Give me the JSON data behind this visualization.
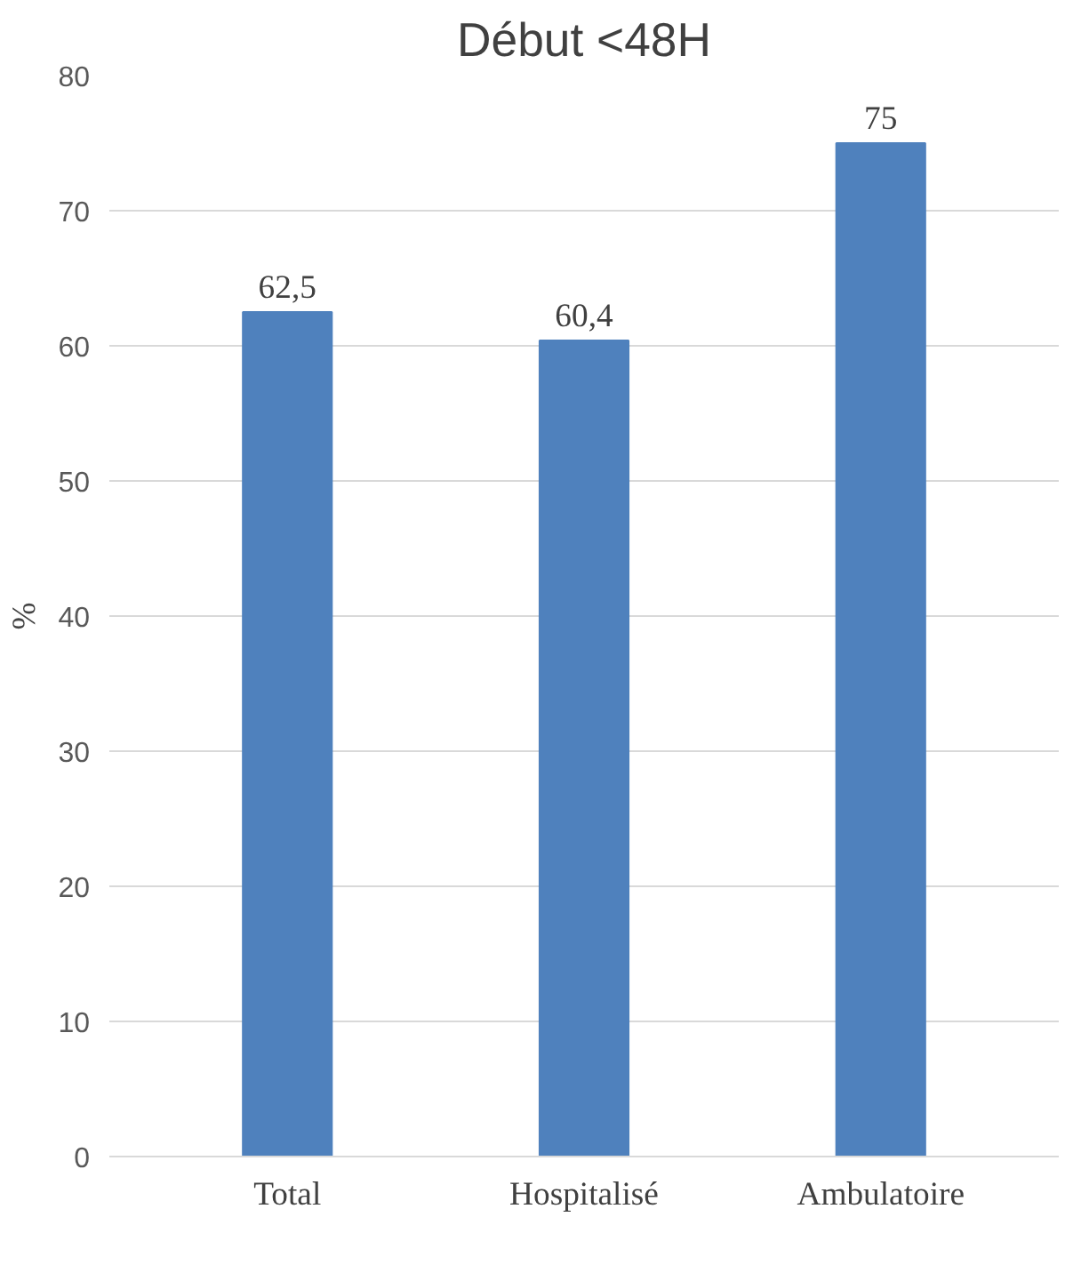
{
  "chart_data": {
    "type": "bar",
    "title": "Début <48H",
    "ylabel": "%",
    "categories": [
      "Total",
      "Hospitalisé",
      "Ambulatoire"
    ],
    "values": [
      62.5,
      60.4,
      75
    ],
    "value_labels": [
      "62,5",
      "60,4",
      "75"
    ],
    "color": "#4f81bd",
    "ylim": [
      0,
      80
    ],
    "yticks": [
      0,
      10,
      20,
      30,
      40,
      50,
      60,
      70,
      80
    ],
    "grid": "y"
  }
}
